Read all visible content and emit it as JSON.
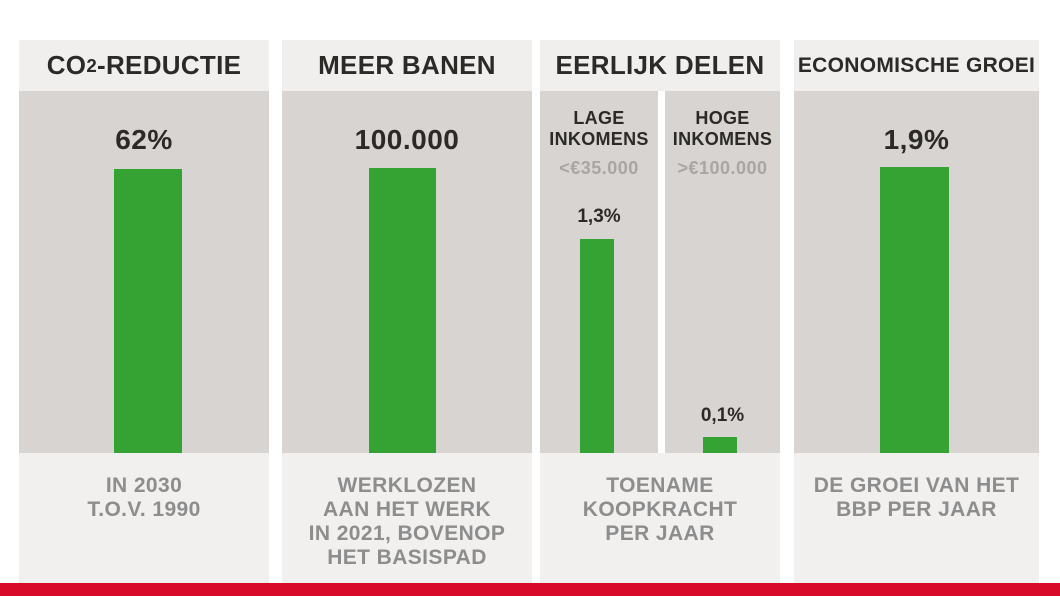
{
  "colors": {
    "header_bg": "#f0efee",
    "chart_bg": "#d8d4d1",
    "footer_bg": "#f1f0ef",
    "bar_green": "#35a234",
    "accent_red": "#d90b2b",
    "title_text": "#2b2a27",
    "caption_text": "#8d8d8d",
    "muted_text": "#a9a5a2"
  },
  "panels": [
    {
      "id": "co2",
      "header": {
        "pre": "CO",
        "sub": "2",
        "post": "-REDUCTIE"
      },
      "value_label": "62%",
      "caption_lines": [
        "IN 2030",
        "T.O.V. 1990"
      ]
    },
    {
      "id": "banen",
      "header": "MEER BANEN",
      "value_label": "100.000",
      "caption_lines": [
        "WERKLOZEN",
        "AAN HET WERK",
        "IN 2021, BOVENOP",
        "HET BASISPAD"
      ]
    },
    {
      "id": "delen",
      "header": "EERLIJK DELEN",
      "groups": [
        {
          "title": "LAGE INKOMENS",
          "range": "<€35.000",
          "value_label": "1,3%"
        },
        {
          "title": "HOGE INKOMENS",
          "range": ">€100.000",
          "value_label": "0,1%"
        }
      ],
      "caption_lines": [
        "TOENAME",
        "KOOPKRACHT",
        "PER JAAR"
      ]
    },
    {
      "id": "groei",
      "header": "ECONOMISCHE GROEI",
      "value_label": "1,9%",
      "caption_lines": [
        "DE GROEI VAN HET",
        "BBP PER JAAR"
      ]
    }
  ],
  "chart_data": [
    {
      "type": "bar",
      "title": "CO2-REDUCTIE",
      "categories": [
        "CO2-reductie"
      ],
      "values": [
        62
      ],
      "unit": "%",
      "data_labels": [
        "62%"
      ],
      "caption": "IN 2030 T.O.V. 1990",
      "bar_color": "#35a234",
      "note": "single stylized bar, height decorative"
    },
    {
      "type": "bar",
      "title": "MEER BANEN",
      "categories": [
        "werklozen aan het werk"
      ],
      "values": [
        100000
      ],
      "data_labels": [
        "100.000"
      ],
      "caption": "WERKLOZEN AAN HET WERK IN 2021, BOVENOP HET BASISPAD",
      "bar_color": "#35a234",
      "note": "single stylized bar, height decorative"
    },
    {
      "type": "bar",
      "title": "EERLIJK DELEN",
      "categories": [
        "LAGE INKOMENS <€35.000",
        "HOGE INKOMENS >€100.000"
      ],
      "values": [
        1.3,
        0.1
      ],
      "unit": "%",
      "data_labels": [
        "1,3%",
        "0,1%"
      ],
      "caption": "TOENAME KOOPKRACHT PER JAAR",
      "bar_color": "#35a234"
    },
    {
      "type": "bar",
      "title": "ECONOMISCHE GROEI",
      "categories": [
        "groei BBP per jaar"
      ],
      "values": [
        1.9
      ],
      "unit": "%",
      "data_labels": [
        "1,9%"
      ],
      "caption": "DE GROEI VAN HET BBP PER JAAR",
      "bar_color": "#35a234",
      "note": "single stylized bar, height decorative"
    }
  ]
}
